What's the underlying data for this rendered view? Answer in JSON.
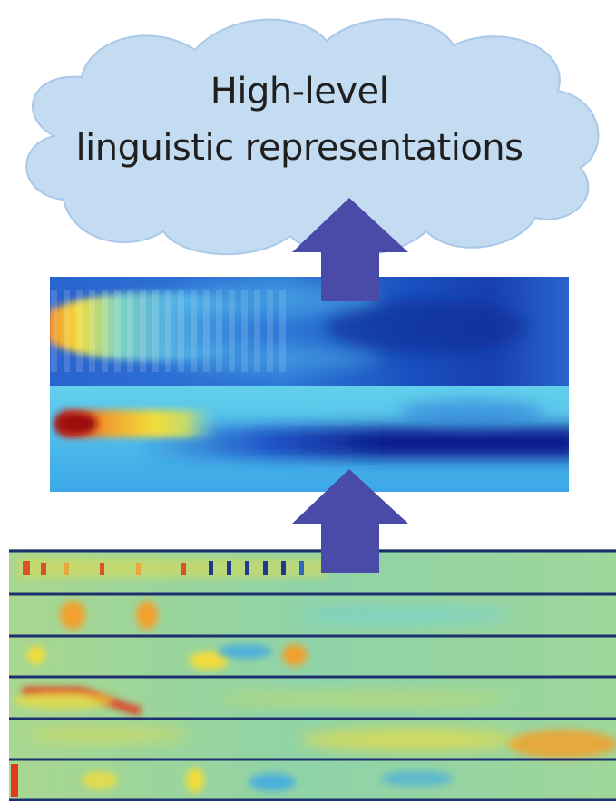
{
  "cloud": {
    "line1": "High-level",
    "line2": "linguistic representations"
  },
  "colors": {
    "cloud_fill": "#c4dcf2",
    "cloud_stroke": "#aac8e8",
    "arrow": "#4a4aa8",
    "divider": "#1c2f6e",
    "colormap": [
      "#0d1f8f",
      "#1e53c7",
      "#3ba7e8",
      "#63d0ec",
      "#7ed3c0",
      "#c5dc6a",
      "#f2dd3a",
      "#f2a12e",
      "#e2391d",
      "#9c1010"
    ]
  },
  "icons": [
    "cloud-shape",
    "up-arrow",
    "up-arrow"
  ]
}
